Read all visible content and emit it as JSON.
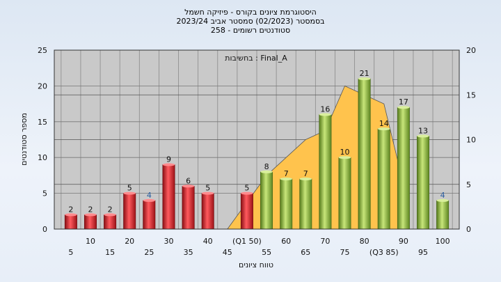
{
  "chart_data": {
    "type": "bar",
    "title_lines": [
      "היסטוגרמת ציונים בקורס - פיזיקה חשמל",
      "בסמסטר  (02/2023)  סמסטר אביב 2023/24",
      "סטודנטים רשומים - 258"
    ],
    "xlabel": "טווח ציונים",
    "ylabel": "מספר סטודנטים",
    "annotation": "בחשיבות : Final_A",
    "ylim": [
      0,
      25
    ],
    "y_ticks": [
      "0",
      "5",
      "10",
      "15",
      "20",
      "25"
    ],
    "y2lim": [
      0,
      20
    ],
    "y2_ticks": [
      "0",
      "5",
      "10",
      "15",
      "20"
    ],
    "grid": true,
    "categories": [
      "5",
      "10",
      "15",
      "20",
      "25",
      "30",
      "35",
      "40",
      "45",
      "50",
      "55",
      "60",
      "65",
      "70",
      "75",
      "80",
      "85",
      "90",
      "95",
      "100"
    ],
    "x_tick_labels": [
      "5",
      "10",
      "15",
      "20",
      "25",
      "30",
      "35",
      "40",
      "45",
      "(Q1 50)",
      "55",
      "60",
      "65",
      "70",
      "75",
      "80",
      "(Q3 85)",
      "90",
      "95",
      "100"
    ],
    "values": [
      2,
      2,
      2,
      5,
      4,
      9,
      6,
      5,
      0,
      5,
      8,
      7,
      7,
      16,
      10,
      21,
      14,
      17,
      13,
      4
    ],
    "value_labels": [
      "2",
      "2",
      "2",
      "5",
      "4",
      "9",
      "6",
      "5",
      "",
      "5",
      "8",
      "7",
      "7",
      "16",
      "10",
      "21",
      "14",
      "17",
      "13",
      "4"
    ],
    "bar_groups": [
      "fail",
      "fail",
      "fail",
      "fail",
      "fail",
      "fail",
      "fail",
      "fail",
      "none",
      "fail",
      "pass",
      "pass",
      "pass",
      "pass",
      "pass",
      "pass",
      "pass",
      "pass",
      "pass",
      "pass"
    ],
    "label_emphasis": [
      false,
      false,
      false,
      false,
      true,
      false,
      false,
      false,
      false,
      false,
      false,
      false,
      false,
      false,
      false,
      false,
      false,
      false,
      false,
      true
    ],
    "area_series": {
      "x": [
        45,
        50,
        55,
        60,
        65,
        70,
        75,
        80,
        85,
        90
      ],
      "values": [
        0,
        3,
        6,
        8,
        10,
        11,
        16,
        15,
        14,
        5
      ]
    },
    "colors": {
      "fail_bar": "#d8232a",
      "pass_bar": "#8fbf3a",
      "area": "#ffc34d",
      "plot_bg": "#c9c9c9",
      "emphasis_label": "#2a5d9f"
    }
  }
}
